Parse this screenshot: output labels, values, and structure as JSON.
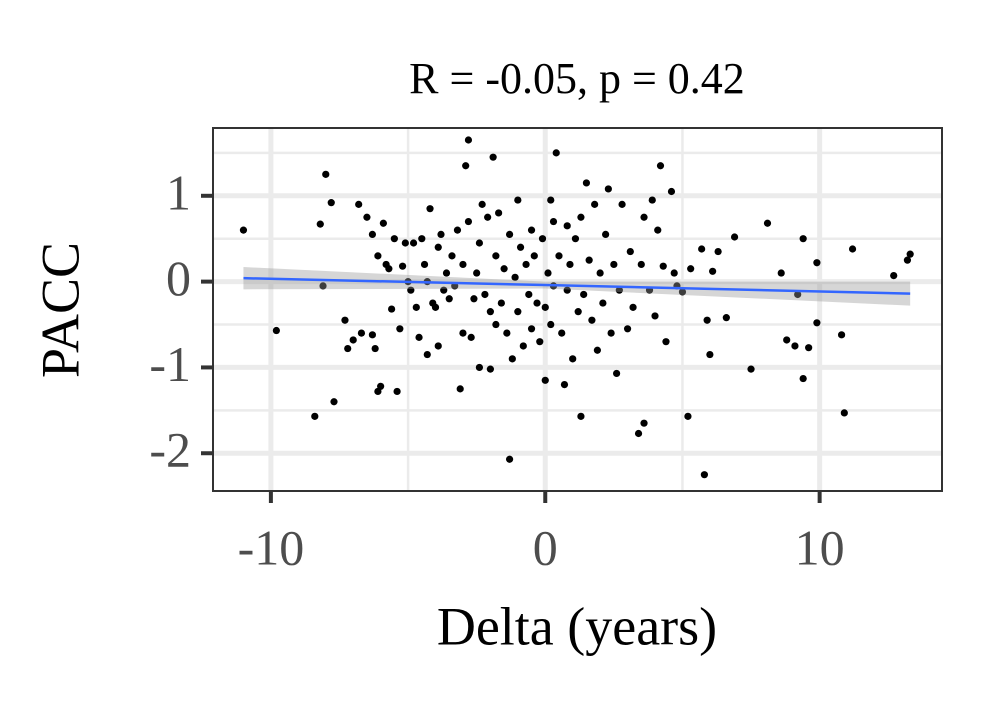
{
  "chart_data": {
    "type": "scatter",
    "title": "R = -0.05, p = 0.42",
    "x_label": "Delta (years)",
    "y_label": "PACC",
    "xlim": [
      -12.11,
      14.46
    ],
    "ylim": [
      -2.44,
      1.79
    ],
    "xticks": [
      -10,
      0,
      10
    ],
    "yticks": [
      -2,
      -1,
      0,
      1
    ],
    "minor_xticks": [
      -5,
      5
    ],
    "minor_yticks": [
      -1.5,
      -0.5,
      0.5,
      1.5
    ],
    "grid": true,
    "color": "#000000",
    "x": [
      -11,
      -9.8,
      -8.4,
      -8.1,
      -8.2,
      -8,
      -7.8,
      -7.7,
      -7.3,
      -7.2,
      -7,
      -6.8,
      -6.7,
      -6.5,
      -6.3,
      -6.3,
      -6.2,
      -6.1,
      -6.1,
      -6,
      -5.9,
      -5.8,
      -5.7,
      -5.6,
      -5.5,
      -5.4,
      -5.3,
      -5.2,
      -5.1,
      -5,
      -4.9,
      -4.8,
      -4.7,
      -4.6,
      -4.5,
      -4.4,
      -4.3,
      -4.3,
      -4.2,
      -4.1,
      -4,
      -3.9,
      -3.9,
      -3.8,
      -3.7,
      -3.6,
      -3.5,
      -3.4,
      -3.3,
      -3.2,
      -3.1,
      -3,
      -3,
      -2.9,
      -2.8,
      -2.8,
      -2.7,
      -2.6,
      -2.5,
      -2.4,
      -2.4,
      -2.3,
      -2.2,
      -2.1,
      -2,
      -2,
      -1.9,
      -1.8,
      -1.8,
      -1.7,
      -1.6,
      -1.5,
      -1.4,
      -1.3,
      -1.3,
      -1.2,
      -1.1,
      -1,
      -1,
      -0.9,
      -0.8,
      -0.7,
      -0.6,
      -0.5,
      -0.5,
      -0.4,
      -0.3,
      -0.2,
      -0.1,
      0,
      0,
      0.1,
      0.2,
      0.2,
      0.3,
      0.3,
      0.4,
      0.5,
      0.6,
      0.7,
      0.8,
      0.8,
      0.9,
      1,
      1.1,
      1.2,
      1.3,
      1.3,
      1.4,
      1.5,
      1.6,
      1.7,
      1.8,
      1.9,
      2,
      2.1,
      2.2,
      2.3,
      2.4,
      2.5,
      2.6,
      2.7,
      2.8,
      3,
      3.1,
      3.2,
      3.4,
      3.5,
      3.6,
      3.6,
      3.8,
      3.9,
      4,
      4.1,
      4.2,
      4.3,
      4.4,
      4.6,
      4.7,
      4.8,
      5,
      5.2,
      5.3,
      5.7,
      5.8,
      5.9,
      6,
      6.1,
      6.3,
      6.6,
      6.9,
      7.5,
      8.1,
      8.6,
      8.8,
      9.1,
      9.2,
      9.4,
      9.4,
      9.6,
      9.9,
      9.9,
      10.8,
      10.9,
      11.2,
      12.7,
      13.2,
      13.3
    ],
    "y": [
      0.6,
      -0.57,
      -1.57,
      -0.05,
      0.67,
      1.25,
      0.92,
      -1.4,
      -0.45,
      -0.78,
      -0.68,
      0.9,
      -0.6,
      0.75,
      0.55,
      -0.62,
      -0.78,
      0.3,
      -1.28,
      -1.22,
      0.68,
      0.2,
      0.15,
      -0.32,
      0.5,
      -1.28,
      -0.55,
      0.18,
      0.45,
      0,
      -0.1,
      0.45,
      -0.3,
      -0.65,
      0.5,
      0.2,
      0,
      -0.85,
      0.85,
      -0.25,
      -0.3,
      0.4,
      -0.75,
      0.55,
      -0.1,
      0.1,
      -0.2,
      0.3,
      -0.05,
      0.6,
      -1.25,
      0.2,
      -0.6,
      1.35,
      1.65,
      0.7,
      -0.65,
      -0.2,
      0.1,
      0.45,
      -1,
      0.9,
      -0.15,
      0.75,
      -0.35,
      -1.02,
      1.45,
      0.3,
      -0.5,
      0.8,
      -0.25,
      0.15,
      -0.6,
      0.55,
      -2.07,
      -0.9,
      0.05,
      0.95,
      -0.35,
      0.4,
      -0.75,
      0.2,
      -0.15,
      0.6,
      -0.55,
      0.3,
      -0.25,
      -0.7,
      0.5,
      -0.3,
      -1.15,
      0.1,
      0.95,
      -0.5,
      0.7,
      -0.05,
      1.5,
      0.3,
      -0.6,
      -1.2,
      0.65,
      -0.1,
      0.2,
      -0.9,
      0.5,
      -0.35,
      -1.57,
      0.75,
      -0.15,
      1.15,
      0.25,
      -0.45,
      0.9,
      -0.8,
      0.1,
      -0.25,
      0.55,
      1.08,
      -0.6,
      0.2,
      -1.07,
      -0.1,
      0.9,
      -0.55,
      0.35,
      -0.3,
      -1.77,
      0.2,
      -1.65,
      0.75,
      -0.1,
      0.95,
      -0.4,
      0.6,
      1.35,
      0.18,
      -0.7,
      1.05,
      0.1,
      -0.05,
      -0.12,
      -1.57,
      0.15,
      0.38,
      -2.25,
      -0.45,
      -0.85,
      0.12,
      0.35,
      -0.42,
      0.52,
      -1.02,
      0.68,
      0.1,
      -0.68,
      -0.75,
      -0.15,
      0.5,
      -1.13,
      -0.77,
      0.22,
      -0.48,
      -0.62,
      -1.53,
      0.38,
      0.07,
      0.25,
      0.32
    ],
    "fit": {
      "color": "#3366ff",
      "band_color": "#999999",
      "x": [
        -11,
        0,
        13.3
      ],
      "y": [
        0.04,
        -0.04,
        -0.14
      ],
      "lower": [
        -0.09,
        -0.08,
        -0.28
      ],
      "upper": [
        0.17,
        0.0,
        0.0
      ]
    }
  }
}
